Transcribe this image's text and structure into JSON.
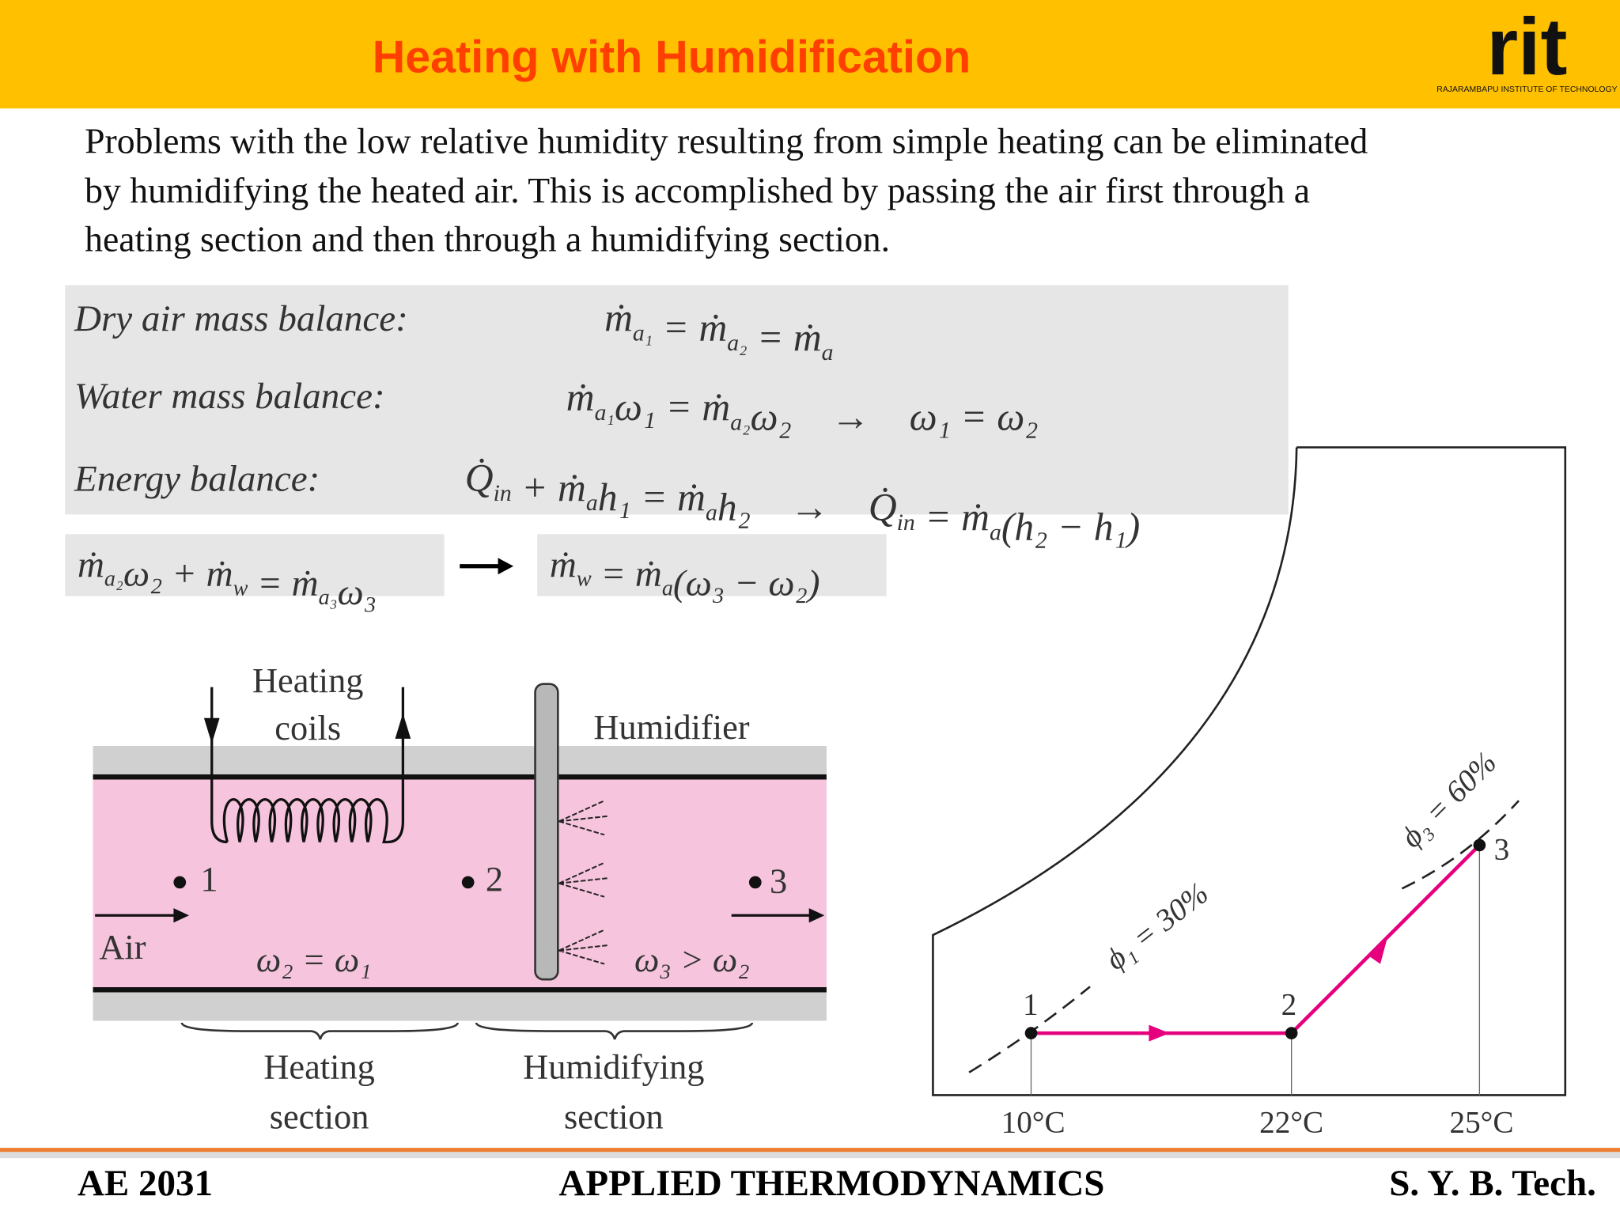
{
  "header": {
    "title": "Heating with Humidification",
    "logo": "rit",
    "logo_caption": "RAJARAMBAPU INSTITUTE OF TECHNOLOGY"
  },
  "paragraph": [
    "Problems with the low relative humidity resulting from simple heating can be eliminated",
    "by humidifying the heated air. This is accomplished by passing the air first through a",
    "heating section and then through a humidifying section."
  ],
  "balances": [
    {
      "label": "Dry air mass balance:",
      "equation": [
        "ṁ",
        {
          "sub": "a₁"
        },
        " = ṁ",
        {
          "sub": "a₂"
        },
        " = ṁ",
        {
          "sub": "a"
        }
      ]
    },
    {
      "label": "Water mass balance:",
      "equation": [
        "ṁ",
        {
          "sub": "a₁"
        },
        "ω₁ = ṁ",
        {
          "sub": "a₂"
        },
        "ω₂    →    ω₁ = ω₂"
      ]
    },
    {
      "label": "Energy balance:",
      "equation": [
        "Q̇",
        {
          "sub": "in"
        },
        " + ṁ",
        {
          "sub": "a"
        },
        "h₁ = ṁ",
        {
          "sub": "a"
        },
        "h₂    →    Q̇",
        {
          "sub": "in"
        },
        " = ṁ",
        {
          "sub": "a"
        },
        "(h₂ − h₁)"
      ]
    }
  ],
  "humidifier_balance": {
    "left": [
      "ṁ",
      {
        "sub": "a₂"
      },
      "ω₂ + ṁ",
      {
        "sub": "w"
      },
      " = ṁ",
      {
        "sub": "a₃"
      },
      "ω₃"
    ],
    "right": [
      "ṁ",
      {
        "sub": "w"
      },
      " = ṁ",
      {
        "sub": "a"
      },
      "(ω₃ − ω₂)"
    ]
  },
  "duct": {
    "heating_coils": [
      "Heating",
      "coils"
    ],
    "humidifier": "Humidifier",
    "points": [
      "1",
      "2",
      "3"
    ],
    "air": "Air",
    "omega_heating": "ω₂ = ω₁",
    "omega_humid": "ω₃ > ω₂",
    "sections": [
      [
        "Heating",
        "section"
      ],
      [
        "Humidifying",
        "section"
      ]
    ]
  },
  "psychro": {
    "phi1": "ϕ₁ = 30%",
    "phi3": "ϕ₃ = 60%",
    "points": [
      "1",
      "2",
      "3"
    ],
    "temps": [
      "10°C",
      "22°C",
      "25°C"
    ]
  },
  "footer": {
    "left": "AE 2031",
    "center": "APPLIED THERMODYNAMICS",
    "right": "S. Y. B. Tech."
  }
}
